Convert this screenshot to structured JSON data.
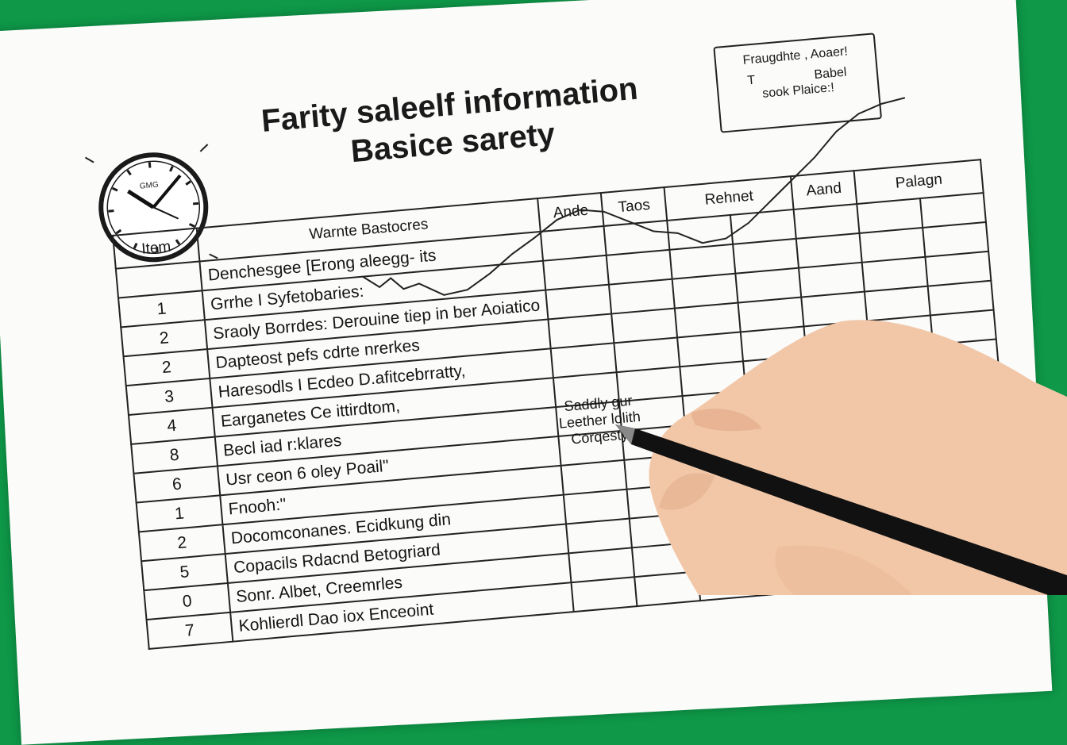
{
  "title": {
    "line1": "Farity saleelf information",
    "line2": "Basice sarety"
  },
  "info_box": {
    "line1": "Fraugdhte , Aoaer!",
    "left": "T",
    "right": "Babel",
    "line3": "sook Plaice:!"
  },
  "clock": {
    "face_text": "GMG"
  },
  "table": {
    "headers": {
      "item": "Item",
      "description": "Warnte Bastocres",
      "col1": "Ande",
      "col2": "Taos",
      "col3": "Rehnet",
      "col4": "Aand",
      "col5": "Palagn"
    },
    "rows": [
      {
        "num": "",
        "desc": "Denchesgee [Erong aleegg- its"
      },
      {
        "num": "1",
        "desc": "Grrhe I Syfetobaries:"
      },
      {
        "num": "2",
        "desc": "Sraoly Borrdes: Derouine tiep in ber Aoiatico"
      },
      {
        "num": "2",
        "desc": "Dapteost pefs cdrte nrerkes"
      },
      {
        "num": "3",
        "desc": "Haresodls I Ecdeo D.afitcebrratty,"
      },
      {
        "num": "4",
        "desc": "Earganetes Ce ittirdtom,"
      },
      {
        "num": "8",
        "desc": "Becl iad r:klares"
      },
      {
        "num": "6",
        "desc": "Usr ceon 6 oley Poail\""
      },
      {
        "num": "1",
        "desc": "Fnooh:\""
      },
      {
        "num": "2",
        "desc": "Docomconanes. Ecidkung din"
      },
      {
        "num": "5",
        "desc": "Copacils Rdacnd Betogriard"
      },
      {
        "num": "0",
        "desc": "Sonr. Albet, Creemrles"
      },
      {
        "num": "7",
        "desc": "Kohlierdl Dao iox Enceoint"
      }
    ]
  },
  "cell_note": {
    "line1": "Saddly gur",
    "line2": "Leether lolith",
    "line3": "Corqesty,"
  },
  "colors": {
    "background": "#0e9848",
    "paper": "#fbfbfa",
    "ink": "#151515",
    "skin": "#f1c7a8",
    "pen": "#111111"
  }
}
